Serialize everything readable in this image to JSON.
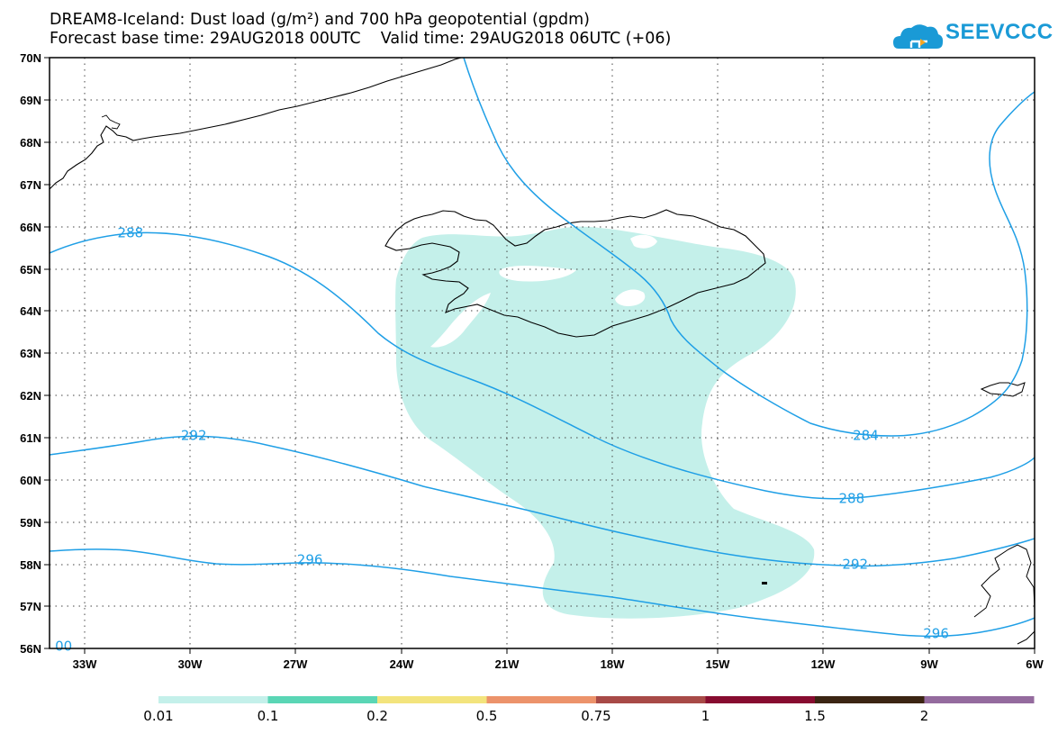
{
  "title": {
    "line1": "DREAM8-Iceland: Dust load (g/m²) and 700 hPa geopotential (gpdm)",
    "line2": "Forecast base time: 29AUG2018 00UTC    Valid time: 29AUG2018 06UTC (+06)"
  },
  "logo": {
    "text": "SEEVCCC",
    "icon": "cloud-icon",
    "color": "#1a9ad6"
  },
  "map": {
    "lon_range": [
      -34,
      -6
    ],
    "lat_range": [
      56,
      70
    ],
    "lat_ticks": [
      "70N",
      "69N",
      "68N",
      "67N",
      "66N",
      "65N",
      "64N",
      "63N",
      "62N",
      "61N",
      "60N",
      "59N",
      "58N",
      "57N",
      "56N"
    ],
    "lon_ticks": [
      "33W",
      "30W",
      "27W",
      "24W",
      "21W",
      "18W",
      "15W",
      "12W",
      "9W",
      "6W"
    ],
    "grid": "dotted",
    "dust_fill_color": "#c4f0ea",
    "contour_color": "#1f9fe6",
    "contour_labels": [
      {
        "text": "288",
        "lon": -31.7,
        "lat": 65.85
      },
      {
        "text": "292",
        "lon": -29.9,
        "lat": 61.05
      },
      {
        "text": "296",
        "lon": -26.6,
        "lat": 58.1
      },
      {
        "text": "284",
        "lon": -10.8,
        "lat": 61.05
      },
      {
        "text": "288",
        "lon": -11.2,
        "lat": 59.55
      },
      {
        "text": "292",
        "lon": -11.1,
        "lat": 58.0
      },
      {
        "text": "296",
        "lon": -8.8,
        "lat": 56.35
      },
      {
        "text": "00",
        "lon": -33.6,
        "lat": 56.05
      }
    ]
  },
  "colorbar": {
    "labels": [
      "0.01",
      "0.1",
      "0.2",
      "0.5",
      "0.75",
      "1",
      "1.5",
      "2"
    ],
    "colors": [
      "#c4f0ea",
      "#5ad6b5",
      "#f3e47d",
      "#ec936b",
      "#a84a47",
      "#870c30",
      "#3b2513",
      "#946b9e"
    ]
  }
}
